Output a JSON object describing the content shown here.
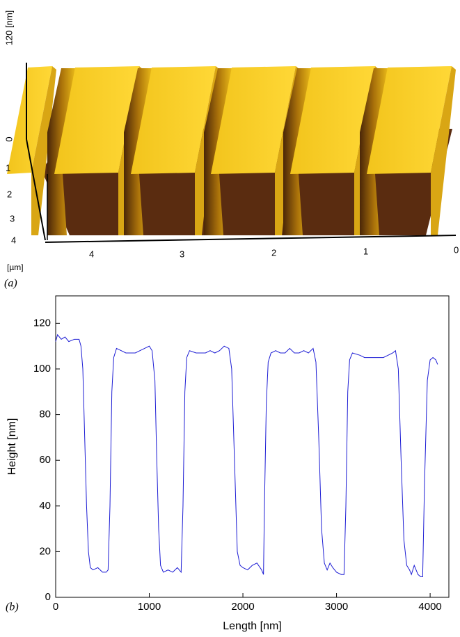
{
  "panel_a": {
    "label": "(a)",
    "z_unit": "120 [nm]",
    "z_zero": "0",
    "y_ticks": [
      "1",
      "2",
      "3",
      "4"
    ],
    "x_ticks": [
      "4",
      "3",
      "2",
      "1",
      "0"
    ],
    "unit": "[µm]"
  },
  "chart_data": {
    "type": "line",
    "panel_label": "(b)",
    "x_label": "Length [nm]",
    "y_label": "Height [nm]",
    "xlim": [
      0,
      4200
    ],
    "ylim": [
      0,
      132
    ],
    "xticks": [
      0,
      1000,
      2000,
      3000,
      4000
    ],
    "yticks": [
      0,
      20,
      40,
      60,
      80,
      100,
      120
    ],
    "x": [
      0,
      20,
      60,
      100,
      140,
      200,
      250,
      270,
      290,
      310,
      330,
      350,
      370,
      400,
      450,
      500,
      540,
      560,
      580,
      600,
      620,
      650,
      700,
      750,
      800,
      850,
      900,
      950,
      1000,
      1030,
      1060,
      1080,
      1100,
      1120,
      1150,
      1200,
      1250,
      1300,
      1340,
      1360,
      1380,
      1400,
      1430,
      1500,
      1550,
      1600,
      1650,
      1700,
      1750,
      1800,
      1850,
      1880,
      1910,
      1940,
      1970,
      2000,
      2050,
      2100,
      2150,
      2200,
      2220,
      2230,
      2250,
      2270,
      2300,
      2350,
      2400,
      2450,
      2500,
      2550,
      2600,
      2650,
      2700,
      2750,
      2780,
      2810,
      2840,
      2870,
      2900,
      2930,
      2960,
      3000,
      3050,
      3080,
      3100,
      3120,
      3140,
      3170,
      3250,
      3300,
      3400,
      3500,
      3550,
      3600,
      3630,
      3660,
      3690,
      3720,
      3750,
      3780,
      3800,
      3830,
      3850,
      3870,
      3900,
      3920,
      3940,
      3970,
      4000,
      4030,
      4060,
      4080
    ],
    "series": [
      {
        "color": "#1c1cd4",
        "values": [
          112,
          115,
          113,
          114,
          112,
          113,
          113,
          110,
          100,
          70,
          40,
          20,
          13,
          12,
          13,
          11,
          11,
          12,
          40,
          90,
          105,
          109,
          108,
          107,
          107,
          107,
          108,
          109,
          110,
          108,
          95,
          60,
          30,
          14,
          11,
          12,
          11,
          13,
          11,
          40,
          90,
          105,
          108,
          107,
          107,
          107,
          108,
          107,
          108,
          110,
          109,
          100,
          60,
          20,
          14,
          13,
          12,
          14,
          15,
          12,
          10,
          40,
          85,
          103,
          107,
          108,
          107,
          107,
          109,
          107,
          107,
          108,
          107,
          109,
          103,
          70,
          30,
          15,
          12,
          15,
          13,
          11,
          10,
          10,
          40,
          90,
          104,
          107,
          106,
          105,
          105,
          105,
          106,
          107,
          108,
          100,
          60,
          25,
          14,
          12,
          10,
          14,
          12,
          10,
          9,
          9,
          50,
          95,
          104,
          105,
          104,
          102
        ]
      }
    ]
  }
}
